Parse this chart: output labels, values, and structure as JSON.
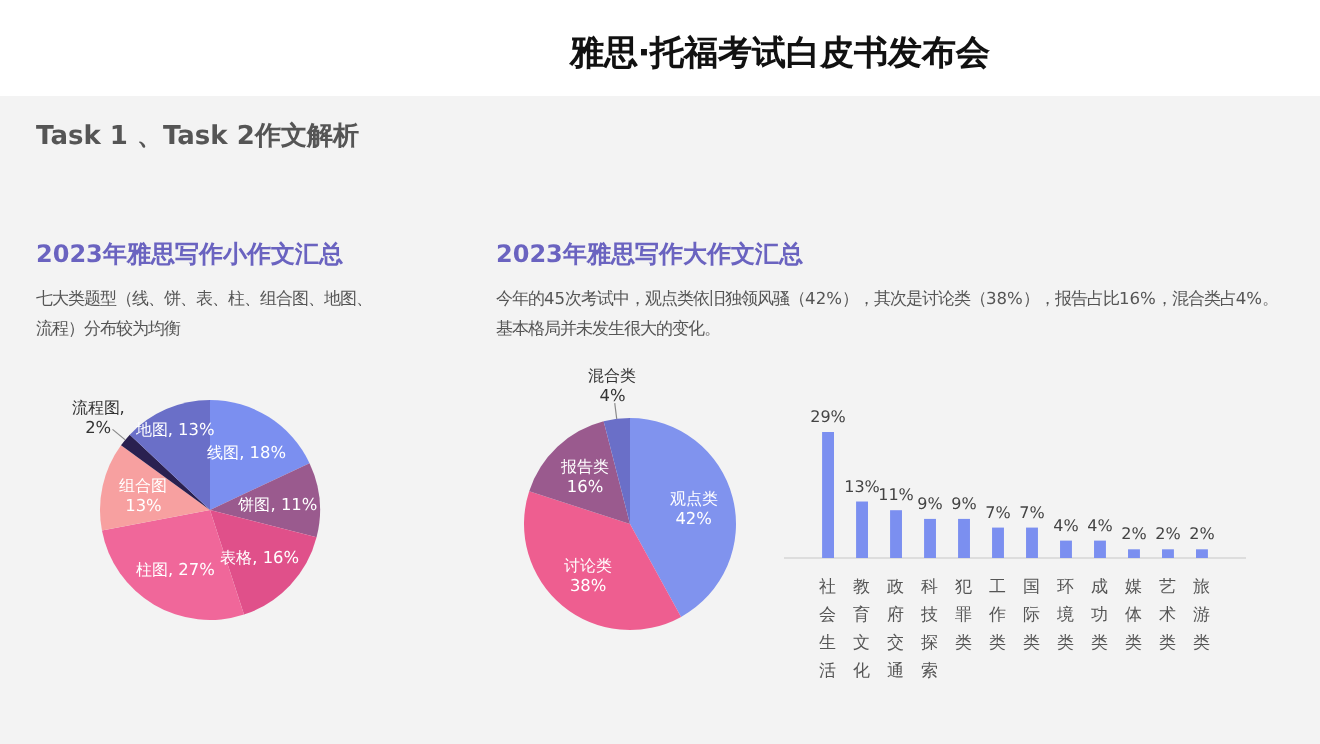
{
  "chart_data": [
    {
      "type": "pie",
      "title": "2023年雅思写作小作文汇总",
      "subtitle": "七大类题型（线、饼、表、柱、组合图、地图、流程）分布较为均衡",
      "annotations": [
        "雅思·托福考试白皮书发布会",
        "Task 1 、Task 2作文解析"
      ],
      "categories": [
        "线图",
        "饼图",
        "表格",
        "柱图",
        "组合图",
        "流程图",
        "地图"
      ],
      "values": [
        18,
        11,
        16,
        27,
        13,
        2,
        13
      ],
      "colors": [
        "#7b8ff0",
        "#9a5a8e",
        "#e0508a",
        "#f0679a",
        "#f7a0a0",
        "#2a2050",
        "#6a6fc8"
      ],
      "value_labels": [
        ", 18%",
        ", 11%",
        ", 16%",
        ", 27%",
        "\n13%",
        ",\n2%",
        ", 13%"
      ]
    },
    {
      "type": "pie",
      "title": "2023年雅思写作大作文汇总",
      "subtitle": "今年的45次考试中，观点类依旧独领风骚（42%），其次是讨论类（38%），报告占比16%，混合类占4%。基本格局并未发生很大的变化。",
      "categories": [
        "观点类",
        "讨论类",
        "报告类",
        "混合类"
      ],
      "values": [
        42,
        38,
        16,
        4
      ],
      "colors": [
        "#8093ee",
        "#ee5e90",
        "#9a5a8e",
        "#6a6fc8"
      ],
      "value_labels": [
        "\n42%",
        "\n38%",
        "\n16%",
        "\n4%"
      ]
    },
    {
      "type": "bar",
      "categories": [
        "社会生活",
        "教育文化",
        "政府交通",
        "科技探索",
        "犯罪类",
        "工作类",
        "国际类",
        "环境类",
        "成功类",
        "媒体类",
        "艺术类",
        "旅游类"
      ],
      "values": [
        29,
        13,
        11,
        9,
        9,
        7,
        7,
        4,
        4,
        2,
        2,
        2
      ],
      "color": "#7b8ff0",
      "value_labels": [
        "29%",
        "13%",
        "11%",
        "9%",
        "9%",
        "7%",
        "7%",
        "4%",
        "4%",
        "2%",
        "2%",
        "2%"
      ]
    }
  ]
}
